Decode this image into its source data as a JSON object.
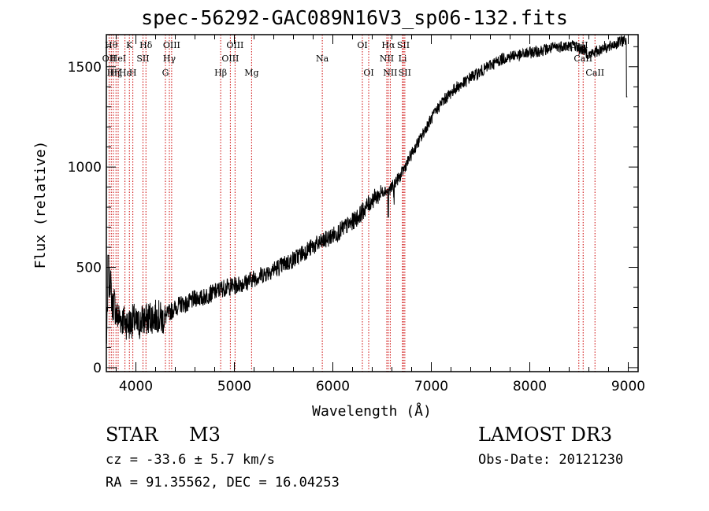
{
  "header": {
    "title": "spec-56292-GAC089N16V3_sp06-132.fits"
  },
  "info": {
    "object_class": "STAR",
    "subclass": "M3",
    "survey": "LAMOST DR3",
    "redshift": "cz = -33.6 ± 5.7 km/s",
    "obs_date": "Obs-Date: 20121230",
    "coords": "RA =  91.35562, DEC =  16.04253"
  },
  "colors": {
    "line": "#000000",
    "marker": "#cc0000",
    "axis": "#000000"
  },
  "chart_data": {
    "type": "line",
    "title": "spec-56292-GAC089N16V3_sp06-132.fits",
    "xlabel": "Wavelength (Å)",
    "ylabel": "Flux (relative)",
    "xlim": [
      3700,
      9100
    ],
    "ylim": [
      -20,
      1660
    ],
    "xticks": [
      4000,
      5000,
      6000,
      7000,
      8000,
      9000
    ],
    "xtick_labels": [
      "4000",
      "5000",
      "6000",
      "7000",
      "8000",
      "9000"
    ],
    "yticks": [
      0,
      500,
      1000,
      1500
    ],
    "ytick_labels": [
      "0",
      "500",
      "1000",
      "1500"
    ],
    "series": [
      {
        "name": "flux",
        "x": [
          3700,
          3720,
          3740,
          3760,
          3780,
          3800,
          3830,
          3860,
          3890,
          3920,
          3950,
          3980,
          4010,
          4040,
          4070,
          4100,
          4140,
          4180,
          4220,
          4260,
          4300,
          4340,
          4380,
          4420,
          4470,
          4520,
          4570,
          4620,
          4670,
          4720,
          4770,
          4820,
          4870,
          4920,
          4970,
          5020,
          5070,
          5120,
          5170,
          5220,
          5270,
          5320,
          5370,
          5420,
          5470,
          5520,
          5570,
          5620,
          5670,
          5720,
          5770,
          5820,
          5870,
          5920,
          5970,
          6020,
          6070,
          6120,
          6170,
          6220,
          6270,
          6320,
          6370,
          6420,
          6470,
          6520,
          6560,
          6600,
          6640,
          6680,
          6720,
          6760,
          6800,
          6850,
          6900,
          6950,
          7000,
          7050,
          7100,
          7150,
          7200,
          7250,
          7300,
          7350,
          7400,
          7450,
          7500,
          7550,
          7600,
          7650,
          7700,
          7750,
          7800,
          7850,
          7900,
          7950,
          8000,
          8050,
          8100,
          8150,
          8200,
          8250,
          8300,
          8350,
          8400,
          8450,
          8500,
          8550,
          8600,
          8650,
          8700,
          8750,
          8800,
          8850,
          8900,
          8950,
          8990
        ],
        "y": [
          120,
          380,
          450,
          300,
          330,
          260,
          250,
          240,
          230,
          215,
          225,
          240,
          210,
          220,
          240,
          235,
          255,
          250,
          260,
          240,
          250,
          275,
          290,
          305,
          320,
          315,
          335,
          350,
          345,
          360,
          370,
          380,
          395,
          400,
          405,
          410,
          420,
          425,
          440,
          450,
          460,
          470,
          485,
          495,
          505,
          520,
          530,
          545,
          565,
          580,
          595,
          610,
          620,
          635,
          650,
          665,
          680,
          700,
          715,
          735,
          760,
          790,
          820,
          845,
          860,
          885,
          880,
          900,
          930,
          950,
          990,
          1025,
          1065,
          1110,
          1150,
          1200,
          1240,
          1280,
          1320,
          1345,
          1370,
          1395,
          1410,
          1425,
          1450,
          1460,
          1475,
          1490,
          1510,
          1520,
          1535,
          1545,
          1550,
          1560,
          1555,
          1565,
          1570,
          1575,
          1580,
          1585,
          1590,
          1595,
          1600,
          1605,
          1600,
          1610,
          1590,
          1585,
          1560,
          1570,
          1580,
          1600,
          1595,
          1610,
          1620,
          1630,
          1640
        ]
      }
    ],
    "lines": [
      {
        "wave": 3728,
        "label": "OII",
        "row": 1
      },
      {
        "wave": 3750,
        "label": "Hθ",
        "row": 0
      },
      {
        "wave": 3771,
        "label": "Hη",
        "row": 2
      },
      {
        "wave": 3798,
        "label": "Hζ",
        "row": 2
      },
      {
        "wave": 3820,
        "label": "HeI",
        "row": 1
      },
      {
        "wave": 3889,
        "label": "Hε",
        "row": 2
      },
      {
        "wave": 3934,
        "label": "K",
        "row": 0
      },
      {
        "wave": 3969,
        "label": "H",
        "row": 2
      },
      {
        "wave": 4072,
        "label": "SII",
        "row": 1
      },
      {
        "wave": 4102,
        "label": "Hδ",
        "row": 0
      },
      {
        "wave": 4300,
        "label": "G",
        "row": 2
      },
      {
        "wave": 4340,
        "label": "Hγ",
        "row": 1
      },
      {
        "wave": 4363,
        "label": "OIII",
        "row": 0
      },
      {
        "wave": 4861,
        "label": "Hβ",
        "row": 2
      },
      {
        "wave": 4959,
        "label": "OIII",
        "row": 1
      },
      {
        "wave": 5007,
        "label": "OIII",
        "row": 0
      },
      {
        "wave": 5175,
        "label": "Mg",
        "row": 2
      },
      {
        "wave": 5893,
        "label": "Na",
        "row": 1
      },
      {
        "wave": 6300,
        "label": "OI",
        "row": 0
      },
      {
        "wave": 6364,
        "label": "OI",
        "row": 2
      },
      {
        "wave": 6548,
        "label": "NII",
        "row": 1
      },
      {
        "wave": 6563,
        "label": "Hα",
        "row": 0
      },
      {
        "wave": 6583,
        "label": "NII",
        "row": 2
      },
      {
        "wave": 6708,
        "label": "Li",
        "row": 1
      },
      {
        "wave": 6716,
        "label": "SII",
        "row": 0
      },
      {
        "wave": 6731,
        "label": "SII",
        "row": 2
      },
      {
        "wave": 8498,
        "label": "CaII",
        "row": 0
      },
      {
        "wave": 8542,
        "label": "CaII",
        "row": 1
      },
      {
        "wave": 8662,
        "label": "CaII",
        "row": 2
      }
    ]
  }
}
